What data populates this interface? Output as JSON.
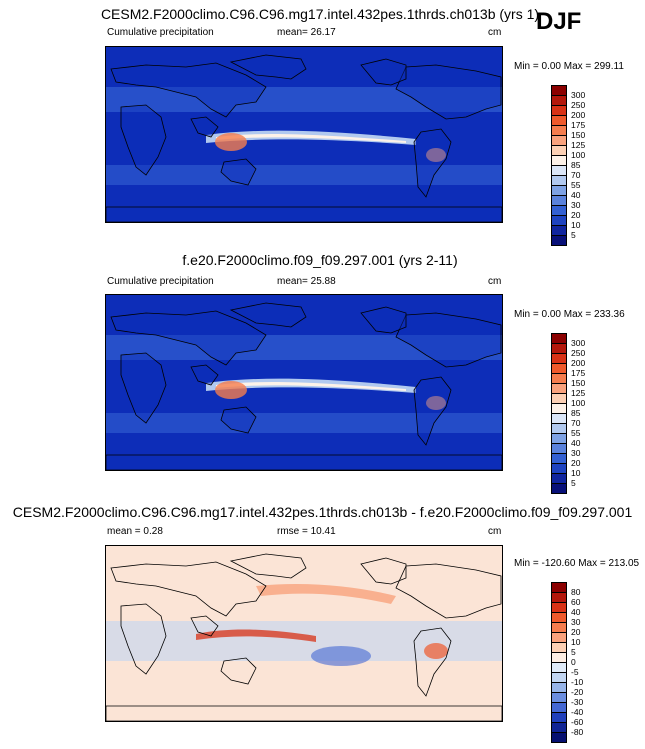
{
  "season": "DJF",
  "panels": [
    {
      "title": "CESM2.F2000climo.C96.C96.mg17.intel.432pes.1thrds.ch013b (yrs 1)",
      "left_label": "Cumulative precipitation",
      "stat_label": "mean=  26.17",
      "units": "cm",
      "minmax": "Min =   0.00 Max = 299.11"
    },
    {
      "title": "f.e20.F2000climo.f09_f09.297.001 (yrs 2-11)",
      "left_label": "Cumulative precipitation",
      "stat_label": "mean=  25.88",
      "units": "cm",
      "minmax": "Min =   0.00 Max = 233.36"
    },
    {
      "title": "CESM2.F2000climo.C96.C96.mg17.intel.432pes.1thrds.ch013b - f.e20.F2000climo.f09_f09.297.001",
      "left_label": "mean =   0.28",
      "stat_label": "rmse =  10.41",
      "units": "cm",
      "minmax": "Min = -120.60 Max = 213.05"
    }
  ],
  "chart_data": [
    {
      "type": "heatmap",
      "title": "CESM2.F2000climo.C96.C96.mg17.intel.432pes.1thrds.ch013b (yrs 1)",
      "label": "Cumulative precipitation",
      "units": "cm",
      "mean": 26.17,
      "min": 0.0,
      "max": 299.11,
      "colorbar_levels": [
        "300",
        "250",
        "200",
        "175",
        "150",
        "125",
        "100",
        "85",
        "70",
        "55",
        "40",
        "30",
        "20",
        "10",
        "5"
      ],
      "colorbar_colors": [
        "#8b0000",
        "#b3170b",
        "#d83216",
        "#ef5a2c",
        "#f57d4e",
        "#f9a27d",
        "#fcd0b4",
        "#fdf2e8",
        "#dbe6f7",
        "#b1c9ef",
        "#7ea2e4",
        "#5a82dc",
        "#3360d2",
        "#1e43c0",
        "#10259e",
        "#081078"
      ],
      "ocean": "#0d2db8"
    },
    {
      "type": "heatmap",
      "title": "f.e20.F2000climo.f09_f09.297.001 (yrs 2-11)",
      "label": "Cumulative precipitation",
      "units": "cm",
      "mean": 25.88,
      "min": 0.0,
      "max": 233.36,
      "colorbar_levels": [
        "300",
        "250",
        "200",
        "175",
        "150",
        "125",
        "100",
        "85",
        "70",
        "55",
        "40",
        "30",
        "20",
        "10",
        "5"
      ],
      "colorbar_colors": [
        "#8b0000",
        "#b3170b",
        "#d83216",
        "#ef5a2c",
        "#f57d4e",
        "#f9a27d",
        "#fcd0b4",
        "#fdf2e8",
        "#dbe6f7",
        "#b1c9ef",
        "#7ea2e4",
        "#5a82dc",
        "#3360d2",
        "#1e43c0",
        "#10259e",
        "#081078"
      ],
      "ocean": "#0d2db8"
    },
    {
      "type": "heatmap",
      "title": "CESM2.F2000climo.C96.C96.mg17.intel.432pes.1thrds.ch013b - f.e20.F2000climo.f09_f09.297.001",
      "units": "cm",
      "mean": 0.28,
      "rmse": 10.41,
      "min": -120.6,
      "max": 213.05,
      "colorbar_levels": [
        "80",
        "60",
        "40",
        "30",
        "20",
        "10",
        "5",
        "0",
        "-5",
        "-10",
        "-20",
        "-30",
        "-40",
        "-60",
        "-80"
      ],
      "colorbar_colors": [
        "#8b0000",
        "#b3170b",
        "#d83216",
        "#ef5a2c",
        "#f57d4e",
        "#f9a27d",
        "#fcd0b4",
        "#fdeee3",
        "#e0ebf8",
        "#c2d6f2",
        "#97b5e9",
        "#6b8ee0",
        "#4468d4",
        "#2040bc",
        "#102494",
        "#061070"
      ],
      "ocean": "#fbe4d6"
    }
  ]
}
